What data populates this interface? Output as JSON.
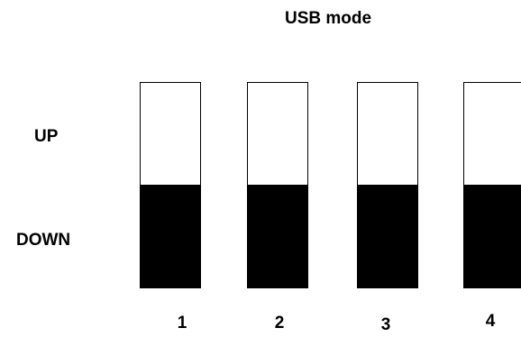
{
  "title": "USB mode",
  "labels": {
    "up": "UP",
    "down": "DOWN"
  },
  "switches": [
    {
      "number": "1",
      "position": "DOWN"
    },
    {
      "number": "2",
      "position": "DOWN"
    },
    {
      "number": "3",
      "position": "DOWN"
    },
    {
      "number": "4",
      "position": "DOWN"
    }
  ],
  "colors": {
    "lever": "#000000",
    "background": "#ffffff"
  }
}
